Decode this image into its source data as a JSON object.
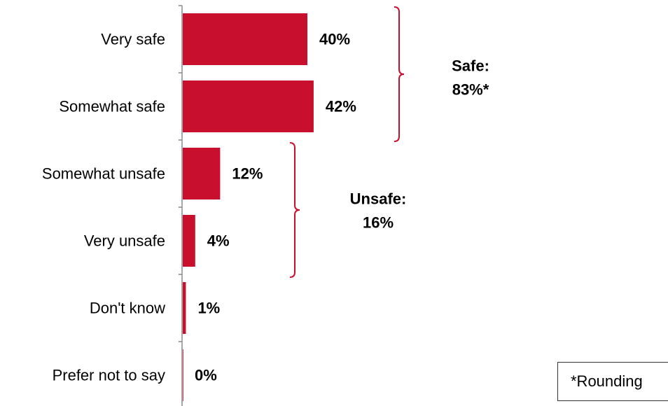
{
  "chart_data": {
    "type": "bar",
    "orientation": "horizontal",
    "categories": [
      "Very safe",
      "Somewhat safe",
      "Somewhat unsafe",
      "Very unsafe",
      "Don't know",
      "Prefer not to say"
    ],
    "values": [
      40,
      42,
      12,
      4,
      1,
      0
    ],
    "value_labels": [
      "40%",
      "42%",
      "12%",
      "4%",
      "1%",
      "0%"
    ],
    "unit": "%",
    "bar_color": "#c8102e",
    "bracket_color": "#c8102e",
    "groups": [
      {
        "line1": "Safe:",
        "line2": "83%*",
        "categories": [
          "Very safe",
          "Somewhat safe"
        ]
      },
      {
        "line1": "Unsafe:",
        "line2": "16%",
        "categories": [
          "Somewhat unsafe",
          "Very unsafe"
        ]
      }
    ],
    "title": "",
    "xlabel": "",
    "ylabel": ""
  },
  "footnote": "*Rounding"
}
